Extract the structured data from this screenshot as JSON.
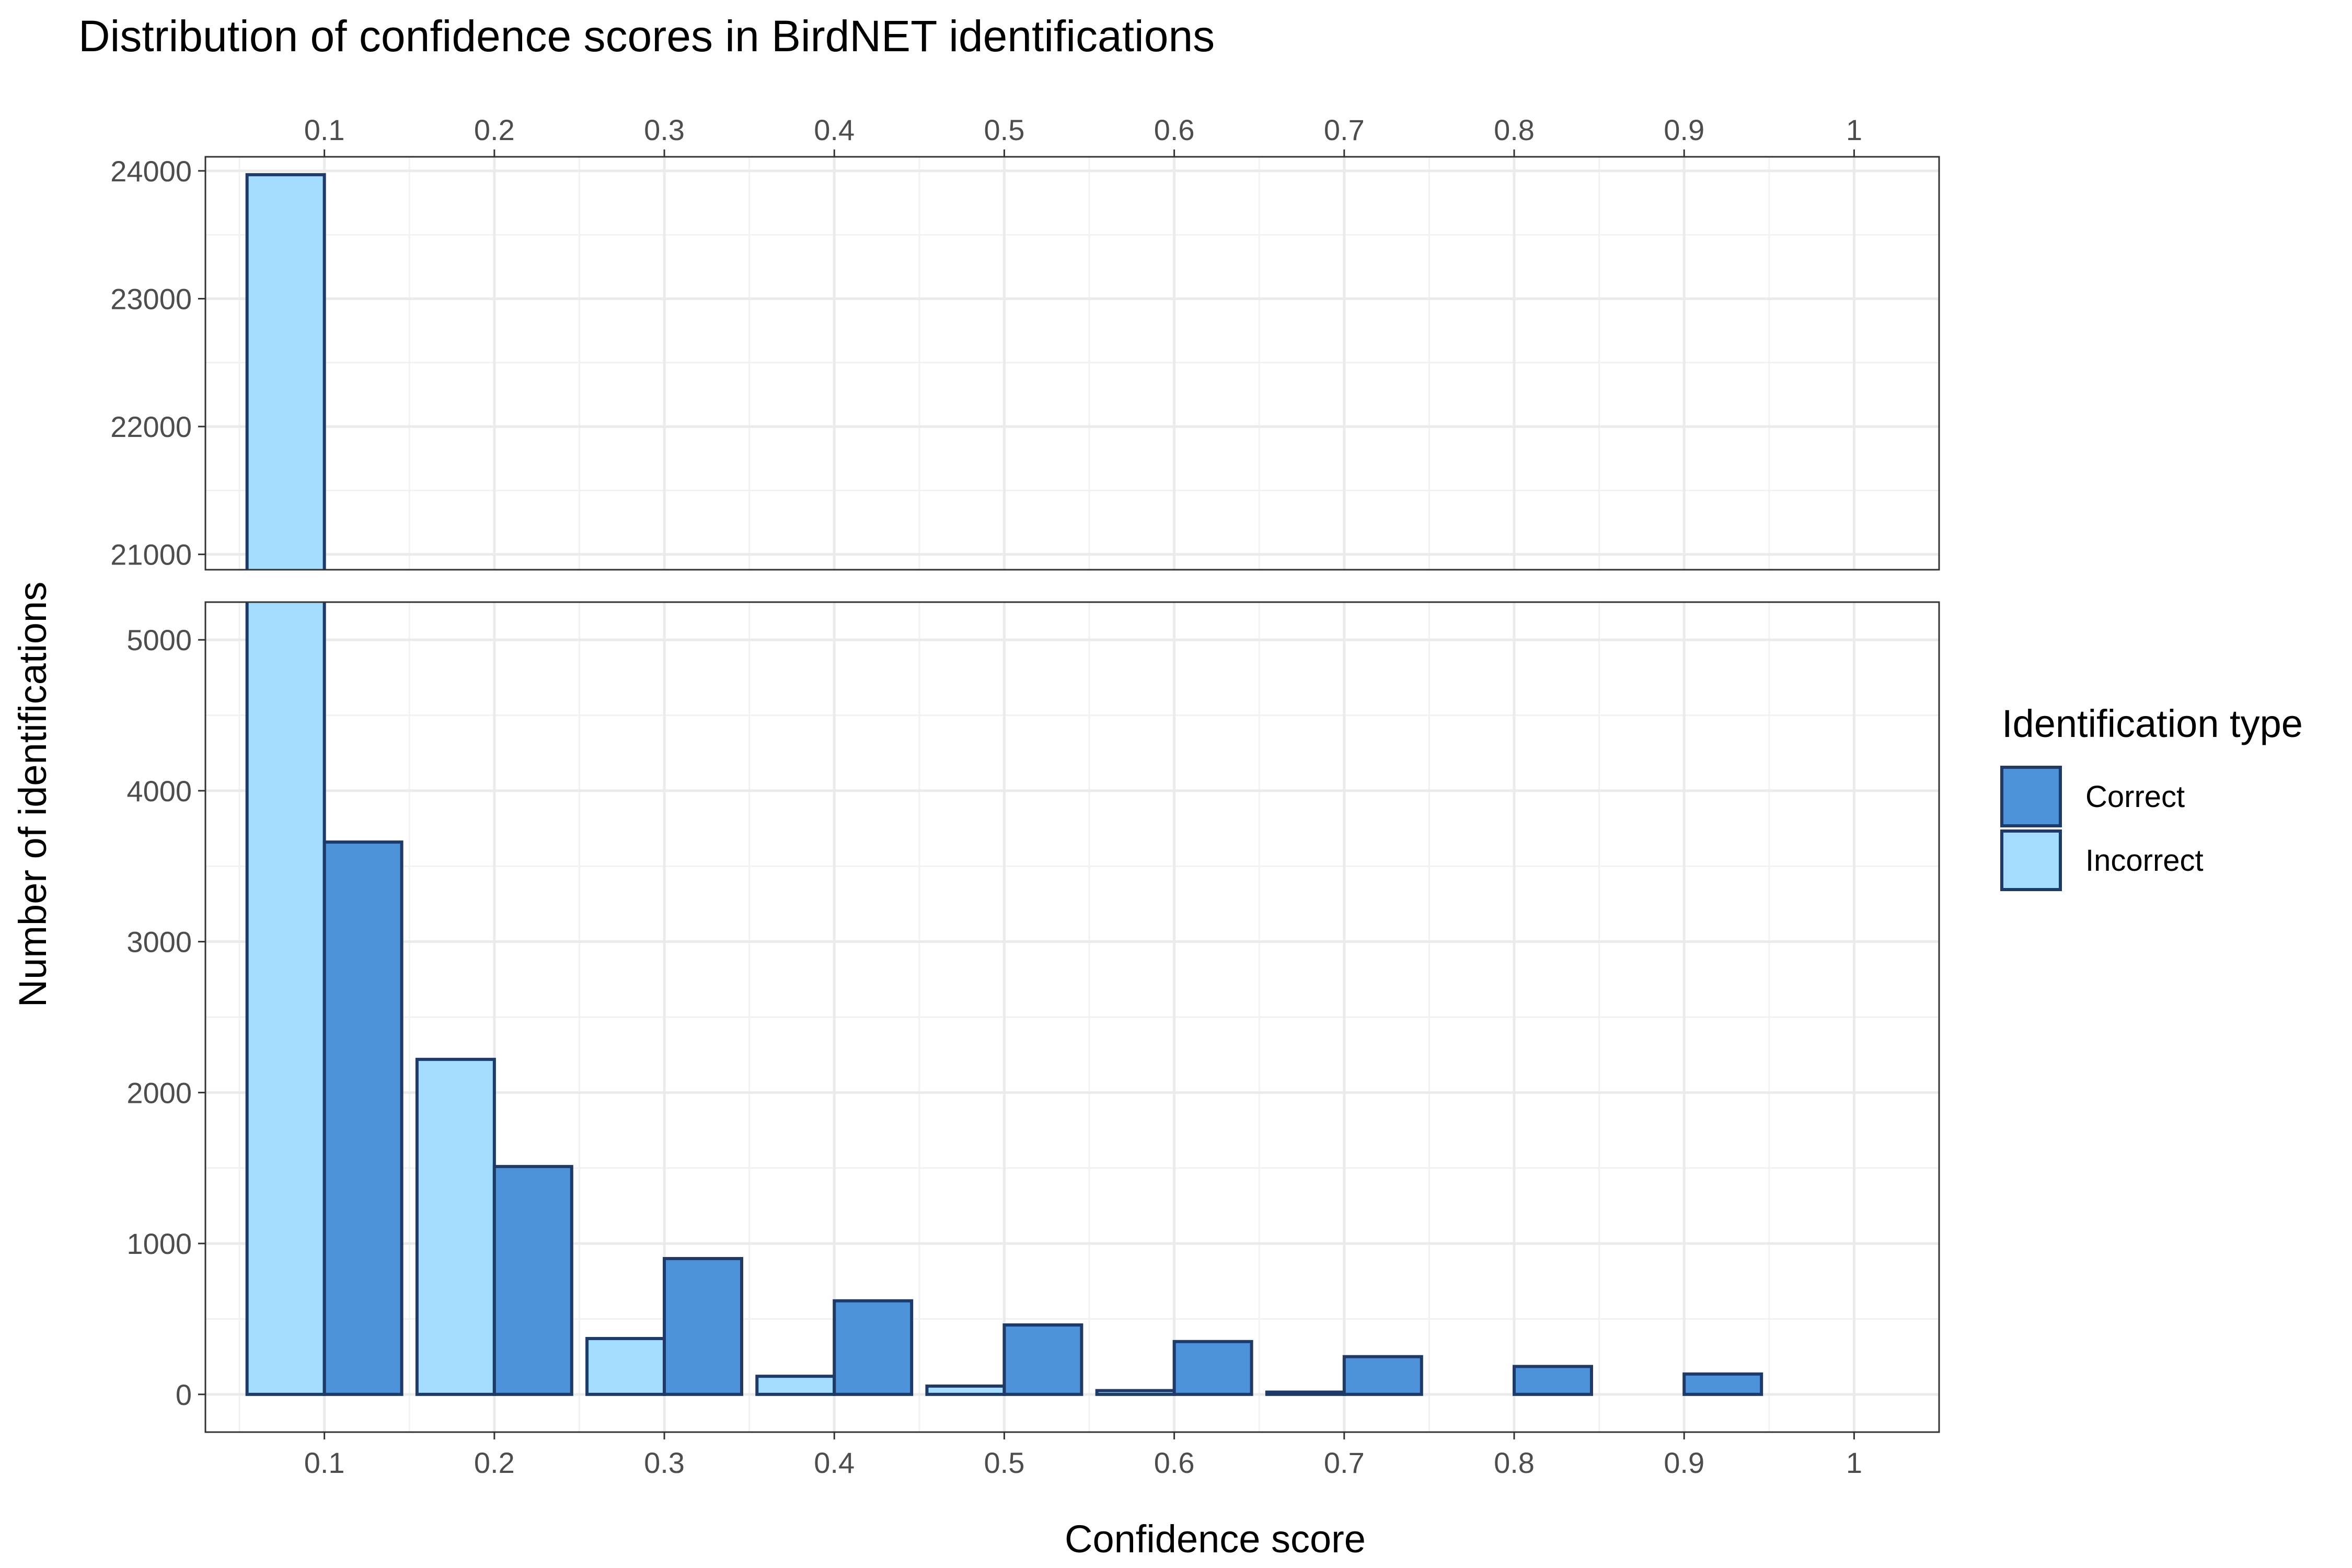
{
  "chart_data": {
    "type": "bar",
    "title": "Distribution of confidence scores in BirdNET identifications",
    "xlabel": "Confidence score",
    "ylabel": "Number of identifications",
    "x_ticks": [
      "0.1",
      "0.2",
      "0.3",
      "0.4",
      "0.5",
      "0.6",
      "0.7",
      "0.8",
      "0.9",
      "1"
    ],
    "x_tick_values": [
      0.1,
      0.2,
      0.3,
      0.4,
      0.5,
      0.6,
      0.7,
      0.8,
      0.9,
      1.0
    ],
    "xlim": [
      0.03,
      1.05
    ],
    "y_axis_break": true,
    "panels": {
      "upper": {
        "ylim": [
          20880,
          24110
        ],
        "y_ticks": [
          21000,
          22000,
          23000,
          24000
        ]
      },
      "lower": {
        "ylim": [
          -250,
          5250
        ],
        "y_ticks": [
          0,
          1000,
          2000,
          3000,
          4000,
          5000
        ]
      }
    },
    "bin_width": 0.1,
    "bins": [
      0.1,
      0.2,
      0.3,
      0.4,
      0.5,
      0.6,
      0.7,
      0.8,
      0.9,
      1.0
    ],
    "series": [
      {
        "name": "Incorrect",
        "color": "#a3dcfe",
        "values": [
          23970,
          2220,
          370,
          120,
          55,
          25,
          15,
          0,
          0,
          0
        ]
      },
      {
        "name": "Correct",
        "color": "#4e92d9",
        "values": [
          3660,
          1510,
          900,
          620,
          460,
          350,
          250,
          185,
          135,
          0
        ]
      }
    ],
    "legend": {
      "title": "Identification type",
      "position": "right",
      "entries": [
        {
          "label": "Correct",
          "color": "#4e92d9"
        },
        {
          "label": "Incorrect",
          "color": "#a3dcfe"
        }
      ]
    },
    "grid": true,
    "bar_outline_color": "#1f3a66"
  }
}
